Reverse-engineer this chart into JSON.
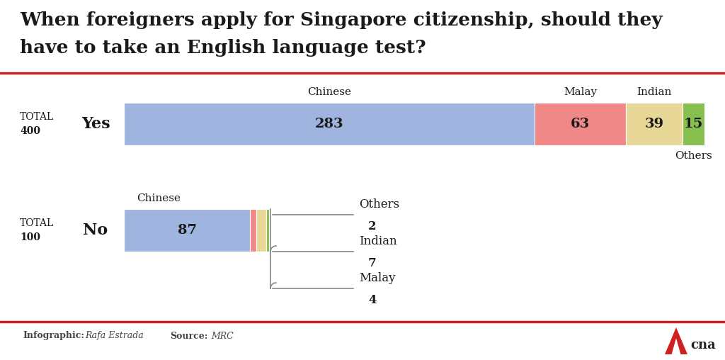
{
  "title_line1": "When foreigners apply for Singapore citizenship, should they",
  "title_line2": "have to take an English language test?",
  "title_fontsize": 19,
  "background_color": "#ffffff",
  "title_color": "#1a1a1a",
  "yes_total": 400,
  "no_total": 100,
  "yes_segments": [
    {
      "label": "Chinese",
      "value": 283,
      "color": "#a0b4e0"
    },
    {
      "label": "Malay",
      "value": 63,
      "color": "#f08888"
    },
    {
      "label": "Indian",
      "value": 39,
      "color": "#e8d898"
    },
    {
      "label": "Others",
      "value": 15,
      "color": "#88c050"
    }
  ],
  "no_segments": [
    {
      "label": "Chinese",
      "value": 87,
      "color": "#a0b4e0"
    },
    {
      "label": "Malay",
      "value": 4,
      "color": "#f08888"
    },
    {
      "label": "Indian",
      "value": 7,
      "color": "#e8d898"
    },
    {
      "label": "Others",
      "value": 2,
      "color": "#88c050"
    }
  ],
  "red_line_color": "#cc2222",
  "cna_logo_color": "#cc2222"
}
